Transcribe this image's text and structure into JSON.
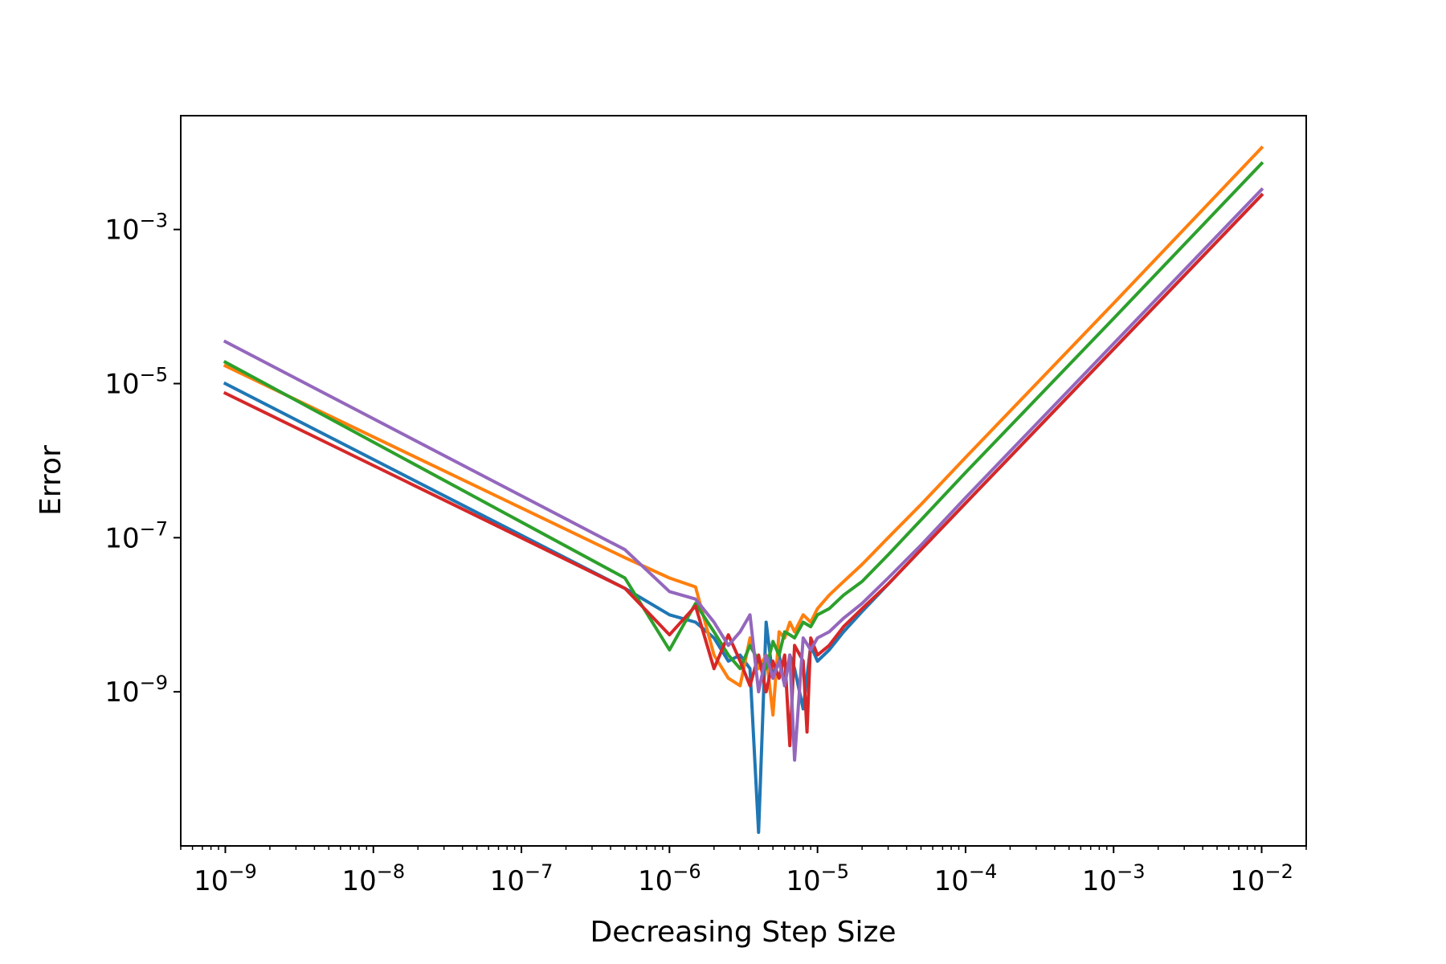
{
  "chart_data": {
    "type": "line",
    "title": "",
    "xlabel": "Decreasing Step Size",
    "ylabel": "Error",
    "xscale": "log",
    "yscale": "log",
    "xlim": [
      5e-10,
      0.02
    ],
    "ylim": [
      1e-11,
      0.03
    ],
    "grid": false,
    "legend": "none",
    "x_ticks": [
      {
        "value": 1e-09,
        "base": "10",
        "exp": "−9"
      },
      {
        "value": 1e-08,
        "base": "10",
        "exp": "−8"
      },
      {
        "value": 1e-07,
        "base": "10",
        "exp": "−7"
      },
      {
        "value": 1e-06,
        "base": "10",
        "exp": "−6"
      },
      {
        "value": 1e-05,
        "base": "10",
        "exp": "−5"
      },
      {
        "value": 0.0001,
        "base": "10",
        "exp": "−4"
      },
      {
        "value": 0.001,
        "base": "10",
        "exp": "−3"
      },
      {
        "value": 0.01,
        "base": "10",
        "exp": "−2"
      }
    ],
    "y_ticks": [
      {
        "value": 1e-09,
        "base": "10",
        "exp": "−9"
      },
      {
        "value": 1e-07,
        "base": "10",
        "exp": "−7"
      },
      {
        "value": 1e-05,
        "base": "10",
        "exp": "−5"
      },
      {
        "value": 0.001,
        "base": "10",
        "exp": "−3"
      }
    ],
    "series": [
      {
        "color": "#1f77b4",
        "points": [
          [
            1e-09,
            1e-05
          ],
          [
            5e-07,
            2.2e-08
          ],
          [
            1e-06,
            1e-08
          ],
          [
            1.5e-06,
            8e-09
          ],
          [
            2e-06,
            5e-09
          ],
          [
            2.5e-06,
            2.5e-09
          ],
          [
            3e-06,
            3e-09
          ],
          [
            3.5e-06,
            2e-09
          ],
          [
            4e-06,
            1.5e-11
          ],
          [
            4.5e-06,
            8e-09
          ],
          [
            5e-06,
            1.5e-09
          ],
          [
            5.5e-06,
            3e-09
          ],
          [
            6e-06,
            1.2e-09
          ],
          [
            6.5e-06,
            3e-09
          ],
          [
            7e-06,
            2e-09
          ],
          [
            8e-06,
            6e-10
          ],
          [
            9e-06,
            4e-09
          ],
          [
            1e-05,
            2.5e-09
          ],
          [
            1.2e-05,
            3.5e-09
          ],
          [
            1.5e-05,
            6e-09
          ],
          [
            2e-05,
            1.1e-08
          ],
          [
            3e-05,
            2.5e-08
          ],
          [
            5e-05,
            7e-08
          ],
          [
            0.0001,
            2.8e-07
          ],
          [
            0.001,
            2.8e-05
          ],
          [
            0.01,
            0.0028
          ]
        ]
      },
      {
        "color": "#ff7f0e",
        "points": [
          [
            1e-09,
            1.7e-05
          ],
          [
            5e-07,
            5.5e-08
          ],
          [
            1e-06,
            3e-08
          ],
          [
            1.5e-06,
            2.3e-08
          ],
          [
            2e-06,
            3e-09
          ],
          [
            2.5e-06,
            1.5e-09
          ],
          [
            3e-06,
            1.2e-09
          ],
          [
            3.5e-06,
            5e-09
          ],
          [
            4e-06,
            2e-09
          ],
          [
            4.5e-06,
            3e-09
          ],
          [
            5e-06,
            5e-10
          ],
          [
            5.5e-06,
            6e-09
          ],
          [
            6e-06,
            5e-09
          ],
          [
            6.5e-06,
            8e-09
          ],
          [
            7e-06,
            6e-09
          ],
          [
            8e-06,
            1e-08
          ],
          [
            9e-06,
            8e-09
          ],
          [
            1e-05,
            1.2e-08
          ],
          [
            1.2e-05,
            1.8e-08
          ],
          [
            1.5e-05,
            2.7e-08
          ],
          [
            2e-05,
            4.5e-08
          ],
          [
            3e-05,
            1e-07
          ],
          [
            5e-05,
            2.7e-07
          ],
          [
            0.0001,
            1.1e-06
          ],
          [
            0.001,
            0.00011
          ],
          [
            0.01,
            0.0115
          ]
        ]
      },
      {
        "color": "#2ca02c",
        "points": [
          [
            1e-09,
            1.9e-05
          ],
          [
            5e-07,
            3e-08
          ],
          [
            1e-06,
            3.5e-09
          ],
          [
            1.5e-06,
            1.4e-08
          ],
          [
            2e-06,
            6e-09
          ],
          [
            2.5e-06,
            3e-09
          ],
          [
            3e-06,
            2e-09
          ],
          [
            3.5e-06,
            4e-09
          ],
          [
            4e-06,
            2.5e-09
          ],
          [
            4.5e-06,
            2e-09
          ],
          [
            5e-06,
            4.5e-09
          ],
          [
            5.5e-06,
            3e-09
          ],
          [
            6e-06,
            6e-09
          ],
          [
            6.5e-06,
            5.5e-09
          ],
          [
            7e-06,
            5e-09
          ],
          [
            8e-06,
            8e-09
          ],
          [
            9e-06,
            7e-09
          ],
          [
            1e-05,
            1e-08
          ],
          [
            1.2e-05,
            1.2e-08
          ],
          [
            1.5e-05,
            1.8e-08
          ],
          [
            2e-05,
            2.7e-08
          ],
          [
            3e-05,
            6e-08
          ],
          [
            5e-05,
            1.7e-07
          ],
          [
            0.0001,
            7e-07
          ],
          [
            0.001,
            7e-05
          ],
          [
            0.01,
            0.0072
          ]
        ]
      },
      {
        "color": "#d62728",
        "points": [
          [
            1e-09,
            7.5e-06
          ],
          [
            5e-07,
            2.2e-08
          ],
          [
            1e-06,
            5.5e-09
          ],
          [
            1.5e-06,
            1.3e-08
          ],
          [
            2e-06,
            2e-09
          ],
          [
            2.5e-06,
            5.5e-09
          ],
          [
            3e-06,
            2.5e-09
          ],
          [
            3.5e-06,
            1.2e-09
          ],
          [
            4e-06,
            3e-09
          ],
          [
            4.5e-06,
            1e-09
          ],
          [
            5e-06,
            2.5e-09
          ],
          [
            5.5e-06,
            1.5e-09
          ],
          [
            6e-06,
            3e-09
          ],
          [
            6.5e-06,
            2e-10
          ],
          [
            7e-06,
            4e-09
          ],
          [
            8e-06,
            2.5e-09
          ],
          [
            8.5e-06,
            3e-10
          ],
          [
            9e-06,
            5e-09
          ],
          [
            1e-05,
            3e-09
          ],
          [
            1.2e-05,
            4e-09
          ],
          [
            1.5e-05,
            7e-09
          ],
          [
            2e-05,
            1.2e-08
          ],
          [
            3e-05,
            2.5e-08
          ],
          [
            5e-05,
            7e-08
          ],
          [
            0.0001,
            2.8e-07
          ],
          [
            0.001,
            2.8e-05
          ],
          [
            0.01,
            0.0028
          ]
        ]
      },
      {
        "color": "#9467bd",
        "points": [
          [
            1e-09,
            3.5e-05
          ],
          [
            5e-07,
            7e-08
          ],
          [
            1e-06,
            2e-08
          ],
          [
            1.5e-06,
            1.6e-08
          ],
          [
            2e-06,
            8e-09
          ],
          [
            2.5e-06,
            4e-09
          ],
          [
            3e-06,
            6e-09
          ],
          [
            3.5e-06,
            1e-08
          ],
          [
            4e-06,
            1e-09
          ],
          [
            4.5e-06,
            3e-09
          ],
          [
            5e-06,
            1.5e-09
          ],
          [
            5.5e-06,
            2.5e-09
          ],
          [
            6e-06,
            1.2e-09
          ],
          [
            6.5e-06,
            3e-09
          ],
          [
            7e-06,
            1.3e-10
          ],
          [
            8e-06,
            5e-09
          ],
          [
            9e-06,
            3.5e-09
          ],
          [
            1e-05,
            5e-09
          ],
          [
            1.2e-05,
            6e-09
          ],
          [
            1.5e-05,
            9e-09
          ],
          [
            2e-05,
            1.4e-08
          ],
          [
            3e-05,
            3e-08
          ],
          [
            5e-05,
            8e-08
          ],
          [
            0.0001,
            3.3e-07
          ],
          [
            0.001,
            3.3e-05
          ],
          [
            0.01,
            0.0033
          ]
        ]
      }
    ]
  }
}
